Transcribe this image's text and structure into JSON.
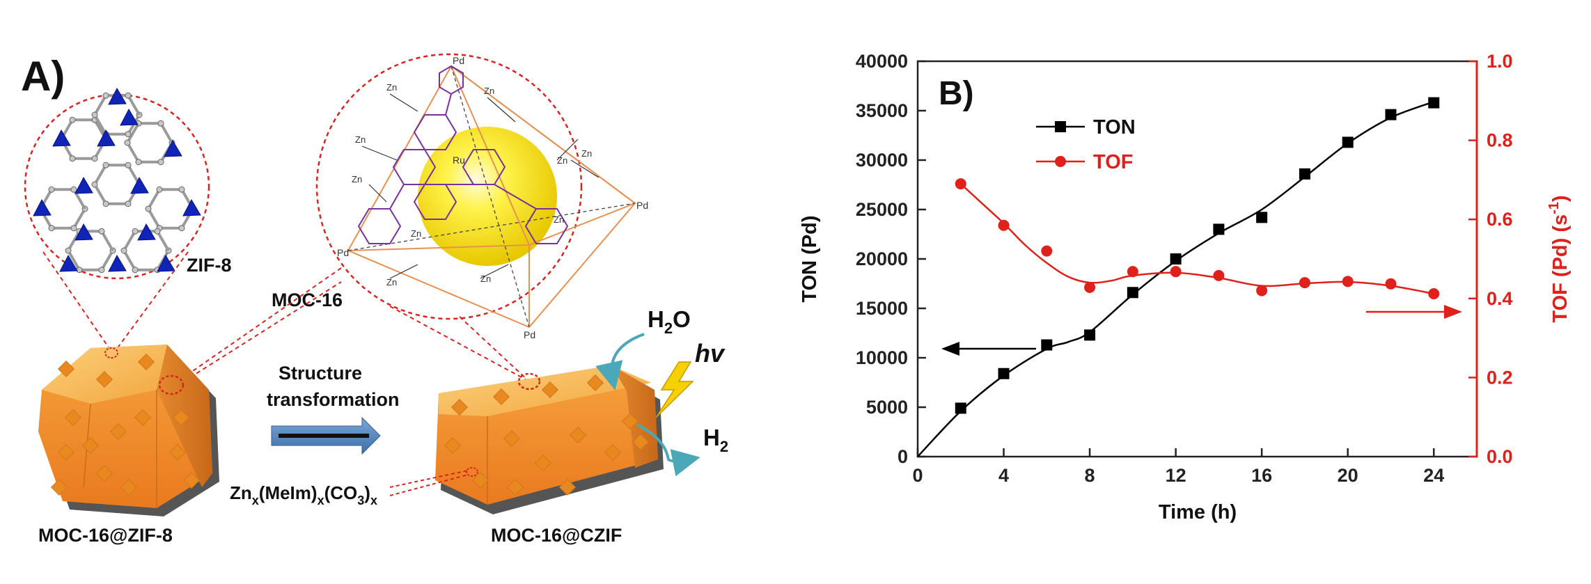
{
  "panel_a": {
    "panel_letter": "A)",
    "labels": {
      "zif8": "ZIF-8",
      "moc16": "MOC-16",
      "structure_line1": "Structure",
      "structure_line2": "transformation",
      "water_main": "H",
      "water_sub": "2",
      "water_tail": "O",
      "hv": "hv",
      "h2_main": "H",
      "h2_sub": "2",
      "carbonate": {
        "part1": "Zn",
        "sub1": "x",
        "part2": "(MeIm)",
        "sub2": "x",
        "part3": "(CO",
        "sub3": "3",
        "part4": ")",
        "sub4": "x"
      },
      "left_crystal": "MOC-16@ZIF-8",
      "right_crystal": "MOC-16@CZIF"
    },
    "cage_labels": {
      "pd_top": "Pd",
      "pd_left": "Pd",
      "pd_right": "Pd",
      "pd_bottom": "Pd",
      "ru": "Ru",
      "zn_labels": [
        "Zn",
        "Zn",
        "Zn",
        "Zn",
        "Zn",
        "Zn",
        "Zn",
        "Zn",
        "Zn",
        "Zn"
      ]
    },
    "colors": {
      "crystal_orange": "#f0922e",
      "crystal_top": "#f7c25a",
      "crystal_shadow": "#555555",
      "square_accent": "#e8891f",
      "arrow_blue": "#4f81bd",
      "dashed_red": "#d9231f",
      "sphere_yellow": "#f5e200",
      "zif_blue": "#1025b8",
      "ligand_purple": "#7a2fa0",
      "octahedron_orange": "#e89050",
      "curve_teal": "#4aa8b8",
      "bolt_yellow": "#f7d000"
    }
  },
  "chart_data": {
    "panel_letter": "B)",
    "type": "line",
    "xlabel": "Time (h)",
    "ylabel_left": "TON (Pd)",
    "ylabel_right_main": "TOF (Pd) (s",
    "ylabel_right_sup": "-1",
    "ylabel_right_close": ")",
    "xlim": [
      0,
      26
    ],
    "x_ticks": [
      0,
      4,
      8,
      12,
      16,
      20,
      24
    ],
    "ylim_left": [
      0,
      40000
    ],
    "y_ticks_left": [
      0,
      5000,
      10000,
      15000,
      20000,
      25000,
      30000,
      35000,
      40000
    ],
    "ylim_right": [
      0,
      1.0
    ],
    "y_ticks_right": [
      "0.0",
      "0.2",
      "0.4",
      "0.6",
      "0.8",
      "1.0"
    ],
    "legend_position": "top-left",
    "grid": false,
    "series": [
      {
        "name": "TON",
        "axis": "left",
        "color": "#000000",
        "marker": "square",
        "x": [
          2,
          4,
          6,
          8,
          10,
          12,
          14,
          16,
          18,
          20,
          22,
          24
        ],
        "y": [
          4900,
          8400,
          11300,
          12300,
          16600,
          20000,
          23000,
          24200,
          28600,
          31800,
          34600,
          35800
        ]
      },
      {
        "name": "TOF",
        "axis": "right",
        "color": "#e0201b",
        "marker": "circle",
        "x": [
          2,
          4,
          6,
          8,
          10,
          12,
          14,
          16,
          18,
          20,
          22,
          24
        ],
        "y": [
          0.69,
          0.585,
          0.52,
          0.428,
          0.468,
          0.468,
          0.458,
          0.42,
          0.44,
          0.443,
          0.437,
          0.412
        ]
      }
    ],
    "ton_curve": {
      "x": [
        0,
        2,
        4,
        6,
        7,
        8,
        10,
        12,
        14,
        16,
        18,
        20,
        22,
        24
      ],
      "y": [
        0,
        4600,
        8200,
        10900,
        11600,
        12600,
        16400,
        19800,
        22600,
        25000,
        28300,
        31700,
        34300,
        35900
      ]
    },
    "tof_curve": {
      "x": [
        2,
        3,
        4,
        5,
        6,
        7,
        8,
        9,
        10,
        12,
        14,
        16,
        18,
        20,
        22,
        24
      ],
      "y": [
        0.69,
        0.64,
        0.59,
        0.535,
        0.49,
        0.455,
        0.44,
        0.445,
        0.458,
        0.465,
        0.452,
        0.432,
        0.438,
        0.442,
        0.432,
        0.412
      ]
    }
  }
}
